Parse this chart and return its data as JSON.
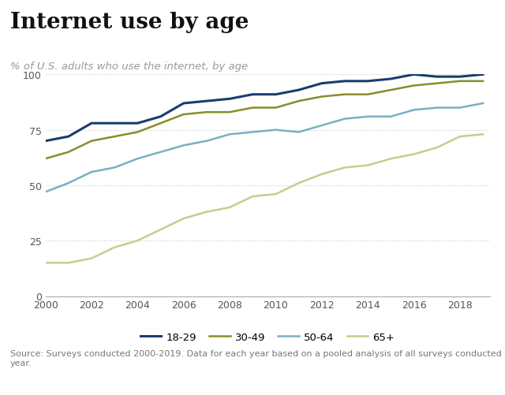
{
  "title": "Internet use by age",
  "subtitle": "% of U.S. adults who use the internet, by age",
  "source": "Source: Surveys conducted 2000-2019. Data for each year based on a pooled analysis of all surveys conducted during that\nyear.",
  "years": [
    2000,
    2001,
    2002,
    2003,
    2004,
    2005,
    2006,
    2007,
    2008,
    2009,
    2010,
    2011,
    2012,
    2013,
    2014,
    2015,
    2016,
    2017,
    2018,
    2019
  ],
  "series": {
    "18-29": [
      70,
      72,
      78,
      78,
      78,
      81,
      87,
      88,
      89,
      91,
      91,
      93,
      96,
      97,
      97,
      98,
      100,
      99,
      99,
      100
    ],
    "30-49": [
      62,
      65,
      70,
      72,
      74,
      78,
      82,
      83,
      83,
      85,
      85,
      88,
      90,
      91,
      91,
      93,
      95,
      96,
      97,
      97
    ],
    "50-64": [
      47,
      51,
      56,
      58,
      62,
      65,
      68,
      70,
      73,
      74,
      75,
      74,
      77,
      80,
      81,
      81,
      84,
      85,
      85,
      87
    ],
    "65+": [
      15,
      15,
      17,
      22,
      25,
      30,
      35,
      38,
      40,
      45,
      46,
      51,
      55,
      58,
      59,
      62,
      64,
      67,
      72,
      73
    ]
  },
  "colors": {
    "18-29": "#1a3d6e",
    "30-49": "#8a8c2a",
    "50-64": "#7aafc2",
    "65+": "#c8cc8c"
  },
  "ylim": [
    0,
    100
  ],
  "yticks": [
    0,
    25,
    50,
    75,
    100
  ],
  "xticks": [
    2000,
    2002,
    2004,
    2006,
    2008,
    2010,
    2012,
    2014,
    2016,
    2018
  ],
  "background_color": "#ffffff",
  "grid_color": "#cccccc",
  "title_fontsize": 20,
  "subtitle_fontsize": 9.5,
  "tick_fontsize": 9,
  "source_fontsize": 8,
  "legend_fontsize": 9.5
}
